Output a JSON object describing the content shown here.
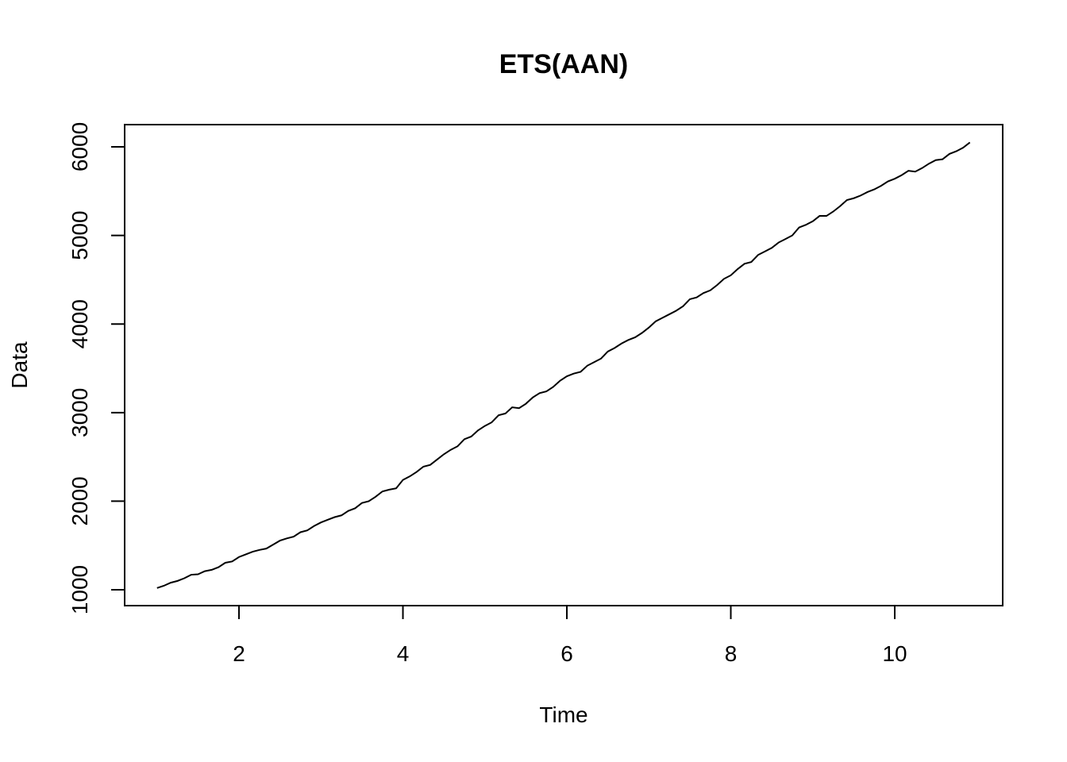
{
  "chart_data": {
    "type": "line",
    "title": "ETS(AAN)",
    "x_label": "Time",
    "y_label": "Data",
    "x": [
      1,
      1.083,
      1.167,
      1.25,
      1.333,
      1.417,
      1.5,
      1.583,
      1.667,
      1.75,
      1.833,
      1.917,
      2,
      2.083,
      2.167,
      2.25,
      2.333,
      2.417,
      2.5,
      2.583,
      2.667,
      2.75,
      2.833,
      2.917,
      3,
      3.083,
      3.167,
      3.25,
      3.333,
      3.417,
      3.5,
      3.583,
      3.667,
      3.75,
      3.833,
      3.917,
      4,
      4.083,
      4.167,
      4.25,
      4.333,
      4.417,
      4.5,
      4.583,
      4.667,
      4.75,
      4.833,
      4.917,
      5,
      5.083,
      5.167,
      5.25,
      5.333,
      5.417,
      5.5,
      5.583,
      5.667,
      5.75,
      5.833,
      5.917,
      6,
      6.083,
      6.167,
      6.25,
      6.333,
      6.417,
      6.5,
      6.583,
      6.667,
      6.75,
      6.833,
      6.917,
      7,
      7.083,
      7.167,
      7.25,
      7.333,
      7.417,
      7.5,
      7.583,
      7.667,
      7.75,
      7.833,
      7.917,
      8,
      8.083,
      8.167,
      8.25,
      8.333,
      8.417,
      8.5,
      8.583,
      8.667,
      8.75,
      8.833,
      8.917,
      9,
      9.083,
      9.167,
      9.25,
      9.333,
      9.417,
      9.5,
      9.583,
      9.667,
      9.75,
      9.833,
      9.917,
      10,
      10.083,
      10.167,
      10.25,
      10.333,
      10.417,
      10.5,
      10.583,
      10.667,
      10.75,
      10.833,
      10.917
    ],
    "series": [
      {
        "color": "#000000",
        "values": [
          1020,
          1045,
          1080,
          1100,
          1130,
          1170,
          1175,
          1210,
          1225,
          1255,
          1305,
          1320,
          1370,
          1400,
          1430,
          1450,
          1465,
          1510,
          1555,
          1580,
          1600,
          1650,
          1670,
          1720,
          1760,
          1790,
          1820,
          1840,
          1890,
          1920,
          1980,
          2000,
          2050,
          2110,
          2130,
          2145,
          2240,
          2280,
          2330,
          2390,
          2410,
          2470,
          2530,
          2580,
          2620,
          2700,
          2730,
          2800,
          2850,
          2890,
          2970,
          2990,
          3060,
          3050,
          3100,
          3170,
          3220,
          3240,
          3290,
          3360,
          3410,
          3440,
          3460,
          3530,
          3570,
          3610,
          3690,
          3730,
          3780,
          3820,
          3850,
          3900,
          3960,
          4030,
          4070,
          4110,
          4150,
          4200,
          4280,
          4300,
          4350,
          4380,
          4440,
          4510,
          4550,
          4620,
          4680,
          4700,
          4780,
          4820,
          4860,
          4920,
          4960,
          5000,
          5090,
          5120,
          5160,
          5220,
          5220,
          5270,
          5330,
          5400,
          5420,
          5450,
          5490,
          5520,
          5560,
          5610,
          5640,
          5680,
          5730,
          5720,
          5760,
          5810,
          5850,
          5860,
          5920,
          5950,
          5990,
          6050
        ]
      }
    ],
    "xlim": [
      0.605,
      11.317
    ],
    "ylim": [
      821,
      6251
    ],
    "xticks": [
      2,
      4,
      6,
      8,
      10
    ],
    "yticks": [
      1000,
      2000,
      3000,
      4000,
      5000,
      6000
    ]
  }
}
